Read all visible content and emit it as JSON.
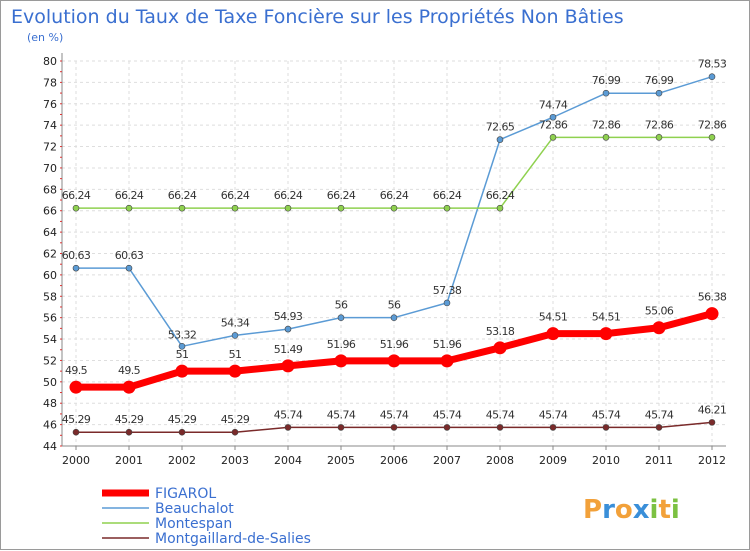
{
  "chart_data": {
    "type": "line",
    "title": "Evolution du Taux de Taxe Foncière sur les Propriétés Non Bâties",
    "subtitle": "(en %)",
    "x": [
      "2000",
      "2001",
      "2002",
      "2003",
      "2004",
      "2005",
      "2006",
      "2007",
      "2008",
      "2009",
      "2010",
      "2011",
      "2012"
    ],
    "ylim": [
      44,
      80
    ],
    "ytick_step": 2,
    "grid": true,
    "legend_position": "bottom-left",
    "series": [
      {
        "name": "FIGAROL",
        "color": "#ff0000",
        "emphasis": true,
        "values": [
          49.5,
          49.5,
          51,
          51,
          51.49,
          51.96,
          51.96,
          51.96,
          53.18,
          54.51,
          54.51,
          55.06,
          56.38
        ],
        "labels": [
          "49.5",
          "49.5",
          "51",
          "51",
          "51.49",
          "51.96",
          "51.96",
          "51.96",
          "53.18",
          "54.51",
          "54.51",
          "55.06",
          "56.38"
        ]
      },
      {
        "name": "Beauchalot",
        "color": "#5b9bd5",
        "emphasis": false,
        "values": [
          60.63,
          60.63,
          53.32,
          54.34,
          54.93,
          56,
          56,
          57.38,
          72.65,
          74.74,
          76.99,
          76.99,
          78.53
        ],
        "labels": [
          "60.63",
          "60.63",
          "53.32",
          "54.34",
          "54.93",
          "56",
          "56",
          "57.38",
          "72.65",
          "74.74",
          "76.99",
          "76.99",
          "78.53"
        ]
      },
      {
        "name": "Montespan",
        "color": "#8fd14f",
        "emphasis": false,
        "values": [
          66.24,
          66.24,
          66.24,
          66.24,
          66.24,
          66.24,
          66.24,
          66.24,
          66.24,
          72.86,
          72.86,
          72.86,
          72.86
        ],
        "labels": [
          "66.24",
          "66.24",
          "66.24",
          "66.24",
          "66.24",
          "66.24",
          "66.24",
          "66.24",
          "66.24",
          "72.86",
          "72.86",
          "72.86",
          "72.86"
        ]
      },
      {
        "name": "Montgaillard-de-Salies",
        "color": "#7a2a2a",
        "emphasis": false,
        "values": [
          45.29,
          45.29,
          45.29,
          45.29,
          45.74,
          45.74,
          45.74,
          45.74,
          45.74,
          45.74,
          45.74,
          45.74,
          46.21
        ],
        "labels": [
          "45.29",
          "45.29",
          "45.29",
          "45.29",
          "45.74",
          "45.74",
          "45.74",
          "45.74",
          "45.74",
          "45.74",
          "45.74",
          "45.74",
          "46.21"
        ]
      }
    ]
  },
  "logo": {
    "letters": [
      "P",
      "r",
      "o",
      "x",
      "i",
      "t",
      "i"
    ],
    "colors": [
      "#f2a13a",
      "#3a8fd9",
      "#f2a13a",
      "#3a8fd9",
      "#7cc142",
      "#f2a13a",
      "#7cc142"
    ]
  }
}
